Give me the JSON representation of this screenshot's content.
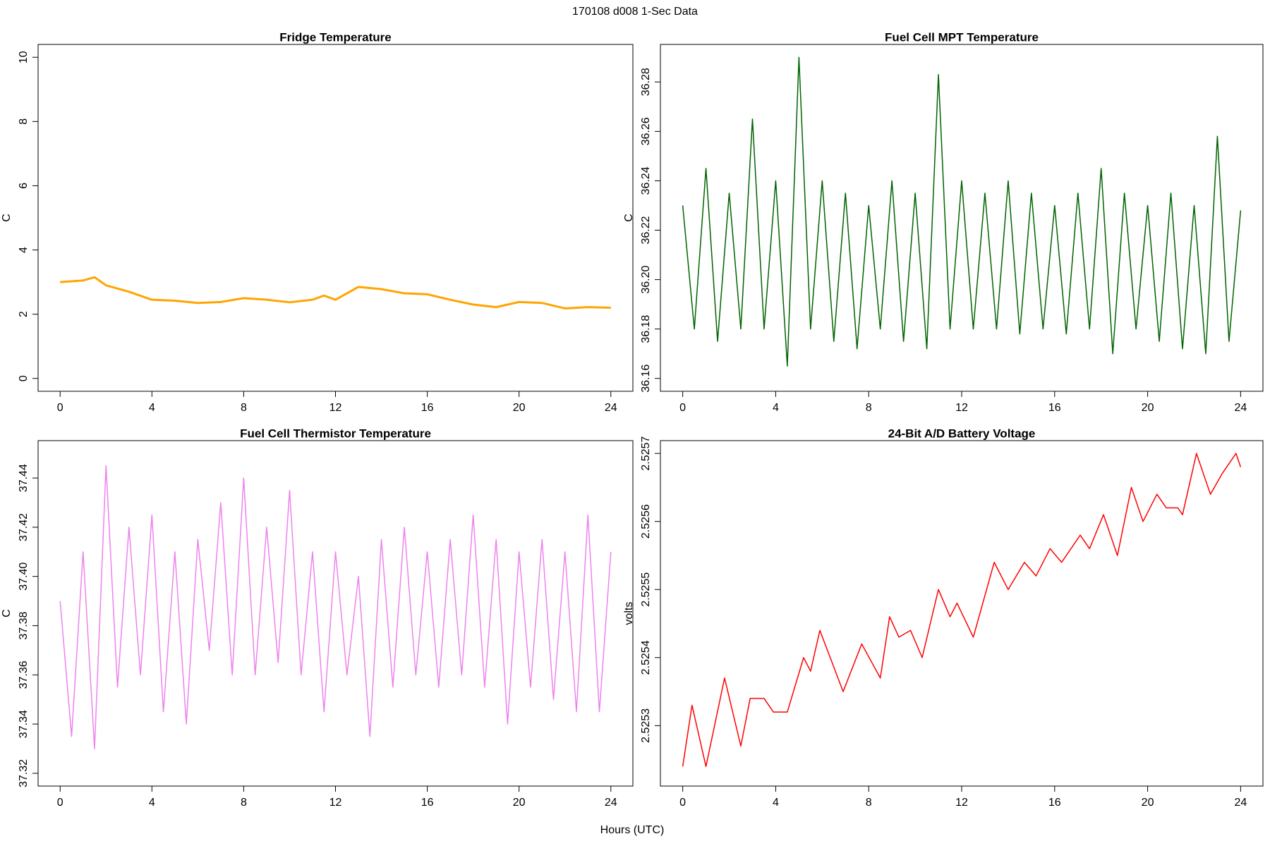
{
  "title": "170108   d008   1-Sec Data",
  "xlabel": "Hours (UTC)",
  "chart_data": [
    {
      "type": "line",
      "title": "Fridge Temperature",
      "ylabel": "C",
      "color": "#ffa500",
      "x": [
        0,
        1,
        1.5,
        2,
        3,
        4,
        5,
        6,
        7,
        8,
        9,
        10,
        11,
        11.5,
        12,
        13,
        14,
        15,
        16,
        17,
        18,
        19,
        20,
        21,
        22,
        23,
        24
      ],
      "values": [
        3.0,
        3.05,
        3.15,
        2.9,
        2.7,
        2.45,
        2.42,
        2.35,
        2.38,
        2.5,
        2.45,
        2.37,
        2.45,
        2.58,
        2.45,
        2.85,
        2.78,
        2.65,
        2.62,
        2.45,
        2.3,
        2.22,
        2.38,
        2.35,
        2.18,
        2.22,
        2.2
      ],
      "xlim": [
        0,
        24
      ],
      "xticks": [
        0,
        4,
        8,
        12,
        16,
        20,
        24
      ],
      "ylim": [
        0,
        10
      ],
      "yticks": [
        0,
        2,
        4,
        6,
        8,
        10
      ]
    },
    {
      "type": "line",
      "title": "Fuel Cell MPT Temperature",
      "ylabel": "C",
      "color": "#006400",
      "x": [
        0,
        0.5,
        1,
        1.5,
        2,
        2.5,
        3,
        3.5,
        4,
        4.5,
        5,
        5.5,
        6,
        6.5,
        7,
        7.5,
        8,
        8.5,
        9,
        9.5,
        10,
        10.5,
        11,
        11.5,
        12,
        12.5,
        13,
        13.5,
        14,
        14.5,
        15,
        15.5,
        16,
        16.5,
        17,
        17.5,
        18,
        18.5,
        19,
        19.5,
        20,
        20.5,
        21,
        21.5,
        22,
        22.5,
        23,
        23.5,
        24
      ],
      "values": [
        36.23,
        36.18,
        36.245,
        36.175,
        36.235,
        36.18,
        36.265,
        36.18,
        36.24,
        36.165,
        36.29,
        36.18,
        36.24,
        36.175,
        36.235,
        36.172,
        36.23,
        36.18,
        36.24,
        36.175,
        36.235,
        36.172,
        36.283,
        36.18,
        36.24,
        36.18,
        36.235,
        36.18,
        36.24,
        36.178,
        36.235,
        36.18,
        36.23,
        36.178,
        36.235,
        36.18,
        36.245,
        36.17,
        36.235,
        36.18,
        36.23,
        36.175,
        36.235,
        36.172,
        36.23,
        36.17,
        36.258,
        36.175,
        36.228
      ],
      "xlim": [
        0,
        24
      ],
      "xticks": [
        0,
        4,
        8,
        12,
        16,
        20,
        24
      ],
      "ylim": [
        36.16,
        36.29
      ],
      "yticks": [
        {
          "value": 36.16,
          "label": "36.16"
        },
        {
          "value": 36.18,
          "label": "36.18"
        },
        {
          "value": 36.2,
          "label": "36.20"
        },
        {
          "value": 36.22,
          "label": "36.22"
        },
        {
          "value": 36.24,
          "label": "36.24"
        },
        {
          "value": 36.26,
          "label": "36.26"
        },
        {
          "value": 36.28,
          "label": "36.28"
        }
      ]
    },
    {
      "type": "line",
      "title": "Fuel Cell Thermistor Temperature",
      "ylabel": "C",
      "color": "#ee82ee",
      "x": [
        0,
        0.5,
        1,
        1.5,
        2,
        2.5,
        3,
        3.5,
        4,
        4.5,
        5,
        5.5,
        6,
        6.5,
        7,
        7.5,
        8,
        8.5,
        9,
        9.5,
        10,
        10.5,
        11,
        11.5,
        12,
        12.5,
        13,
        13.5,
        14,
        14.5,
        15,
        15.5,
        16,
        16.5,
        17,
        17.5,
        18,
        18.5,
        19,
        19.5,
        20,
        20.5,
        21,
        21.5,
        22,
        22.5,
        23,
        23.5,
        24
      ],
      "values": [
        37.39,
        37.335,
        37.41,
        37.33,
        37.445,
        37.355,
        37.42,
        37.36,
        37.425,
        37.345,
        37.41,
        37.34,
        37.415,
        37.37,
        37.43,
        37.36,
        37.44,
        37.36,
        37.42,
        37.365,
        37.435,
        37.36,
        37.41,
        37.345,
        37.41,
        37.36,
        37.4,
        37.335,
        37.415,
        37.355,
        37.42,
        37.36,
        37.41,
        37.355,
        37.415,
        37.36,
        37.425,
        37.355,
        37.415,
        37.34,
        37.41,
        37.355,
        37.415,
        37.35,
        37.41,
        37.345,
        37.425,
        37.345,
        37.41
      ],
      "xlim": [
        0,
        24
      ],
      "xticks": [
        0,
        4,
        8,
        12,
        16,
        20,
        24
      ],
      "ylim": [
        37.32,
        37.45
      ],
      "yticks": [
        {
          "value": 37.32,
          "label": "37.32"
        },
        {
          "value": 37.34,
          "label": "37.34"
        },
        {
          "value": 37.36,
          "label": "37.36"
        },
        {
          "value": 37.38,
          "label": "37.38"
        },
        {
          "value": 37.4,
          "label": "37.40"
        },
        {
          "value": 37.42,
          "label": "37.42"
        },
        {
          "value": 37.44,
          "label": "37.44"
        }
      ]
    },
    {
      "type": "line",
      "title": "24-Bit A/D Battery Voltage",
      "ylabel": "volts",
      "color": "#ff0000",
      "x": [
        0,
        0.4,
        1,
        1.8,
        2.5,
        2.9,
        3.5,
        3.9,
        4.5,
        5.2,
        5.5,
        5.9,
        6.9,
        7.7,
        8.5,
        8.9,
        9.3,
        9.8,
        10.3,
        11,
        11.5,
        11.8,
        12.5,
        13.4,
        14,
        14.7,
        15.2,
        15.8,
        16.3,
        17.1,
        17.5,
        18.1,
        18.7,
        19.3,
        19.8,
        20.4,
        20.8,
        21.3,
        21.5,
        22.1,
        22.7,
        23.2,
        23.8,
        24
      ],
      "values": [
        2.52524,
        2.52533,
        2.52524,
        2.52537,
        2.52527,
        2.52534,
        2.52534,
        2.52532,
        2.52532,
        2.5254,
        2.52538,
        2.52544,
        2.52535,
        2.52542,
        2.52537,
        2.52546,
        2.52543,
        2.52544,
        2.5254,
        2.5255,
        2.52546,
        2.52548,
        2.52543,
        2.52554,
        2.5255,
        2.52554,
        2.52552,
        2.52556,
        2.52554,
        2.52558,
        2.52556,
        2.52561,
        2.52555,
        2.52565,
        2.5256,
        2.52564,
        2.52562,
        2.52562,
        2.52561,
        2.5257,
        2.52564,
        2.52567,
        2.5257,
        2.52568
      ],
      "xlim": [
        0,
        24
      ],
      "xticks": [
        0,
        4,
        8,
        12,
        16,
        20,
        24
      ],
      "ylim": [
        2.52523,
        2.5257
      ],
      "yticks": [
        2.5253,
        2.5254,
        2.5255,
        2.5256,
        2.5257
      ]
    }
  ]
}
